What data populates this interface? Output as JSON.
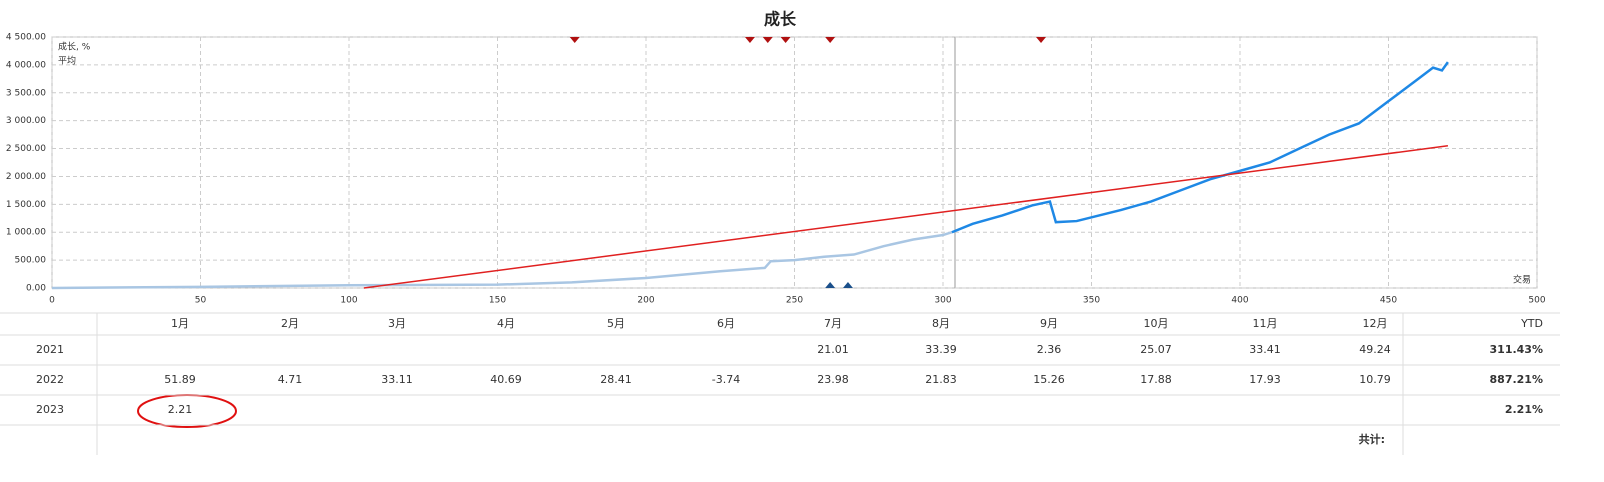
{
  "chart_data": {
    "type": "line",
    "title": "成长",
    "x_label": "交易",
    "xlim": [
      0,
      500
    ],
    "xticks": [
      0,
      50,
      100,
      150,
      200,
      250,
      300,
      350,
      400,
      450,
      500
    ],
    "ylim": [
      0,
      4500
    ],
    "yticks": [
      {
        "value": 0,
        "label": "0.00"
      },
      {
        "value": 500,
        "label": "500.00"
      },
      {
        "value": 1000,
        "label": "1 000.00"
      },
      {
        "value": 1500,
        "label": "1 500.00"
      },
      {
        "value": 2000,
        "label": "2 000.00"
      },
      {
        "value": 2500,
        "label": "2 500.00"
      },
      {
        "value": 3000,
        "label": "3 000.00"
      },
      {
        "value": 3500,
        "label": "3 500.00"
      },
      {
        "value": 4000,
        "label": "4 000.00"
      },
      {
        "value": 4500,
        "label": "4 500.00"
      }
    ],
    "grid": true,
    "legend": "top-left",
    "split_x": 303,
    "series": [
      {
        "name": "成长, %",
        "color": "#1e88e5",
        "history_color": "#a9c6e3",
        "x": [
          0,
          20,
          50,
          100,
          150,
          175,
          200,
          225,
          240,
          242,
          250,
          260,
          270,
          280,
          290,
          300,
          303,
          310,
          320,
          330,
          336,
          338,
          345,
          360,
          370,
          380,
          390,
          400,
          410,
          420,
          430,
          440,
          450,
          460,
          465,
          468,
          470
        ],
        "values": [
          0,
          10,
          20,
          50,
          60,
          100,
          180,
          300,
          360,
          480,
          500,
          560,
          600,
          750,
          870,
          950,
          1000,
          1150,
          1300,
          1480,
          1550,
          1180,
          1200,
          1400,
          1550,
          1750,
          1950,
          2100,
          2250,
          2500,
          2750,
          2950,
          3350,
          3750,
          3950,
          3900,
          4050
        ]
      },
      {
        "name": "平均",
        "color": "#e02020",
        "x": [
          105,
          470
        ],
        "values": [
          0,
          2550
        ]
      }
    ],
    "top_markers_x": [
      176,
      235,
      241,
      247,
      262,
      333
    ],
    "bottom_markers_x": [
      262,
      268
    ]
  },
  "table": {
    "header": [
      "1月",
      "2月",
      "3月",
      "4月",
      "5月",
      "6月",
      "7月",
      "8月",
      "9月",
      "10月",
      "11月",
      "12月",
      "YTD"
    ],
    "rows": [
      {
        "year": "2021",
        "months": [
          null,
          null,
          null,
          null,
          null,
          null,
          "21.01",
          "33.39",
          "2.36",
          "25.07",
          "33.41",
          "49.24"
        ],
        "ytd": "311.43%"
      },
      {
        "year": "2022",
        "months": [
          "51.89",
          "4.71",
          "33.11",
          "40.69",
          "28.41",
          "-3.74",
          "23.98",
          "21.83",
          "15.26",
          "17.88",
          "17.93",
          "10.79"
        ],
        "ytd": "887.21%"
      },
      {
        "year": "2023",
        "months": [
          "2.21",
          null,
          null,
          null,
          null,
          null,
          null,
          null,
          null,
          null,
          null,
          null
        ],
        "ytd": "2.21%"
      }
    ],
    "total_label": "共计:"
  }
}
